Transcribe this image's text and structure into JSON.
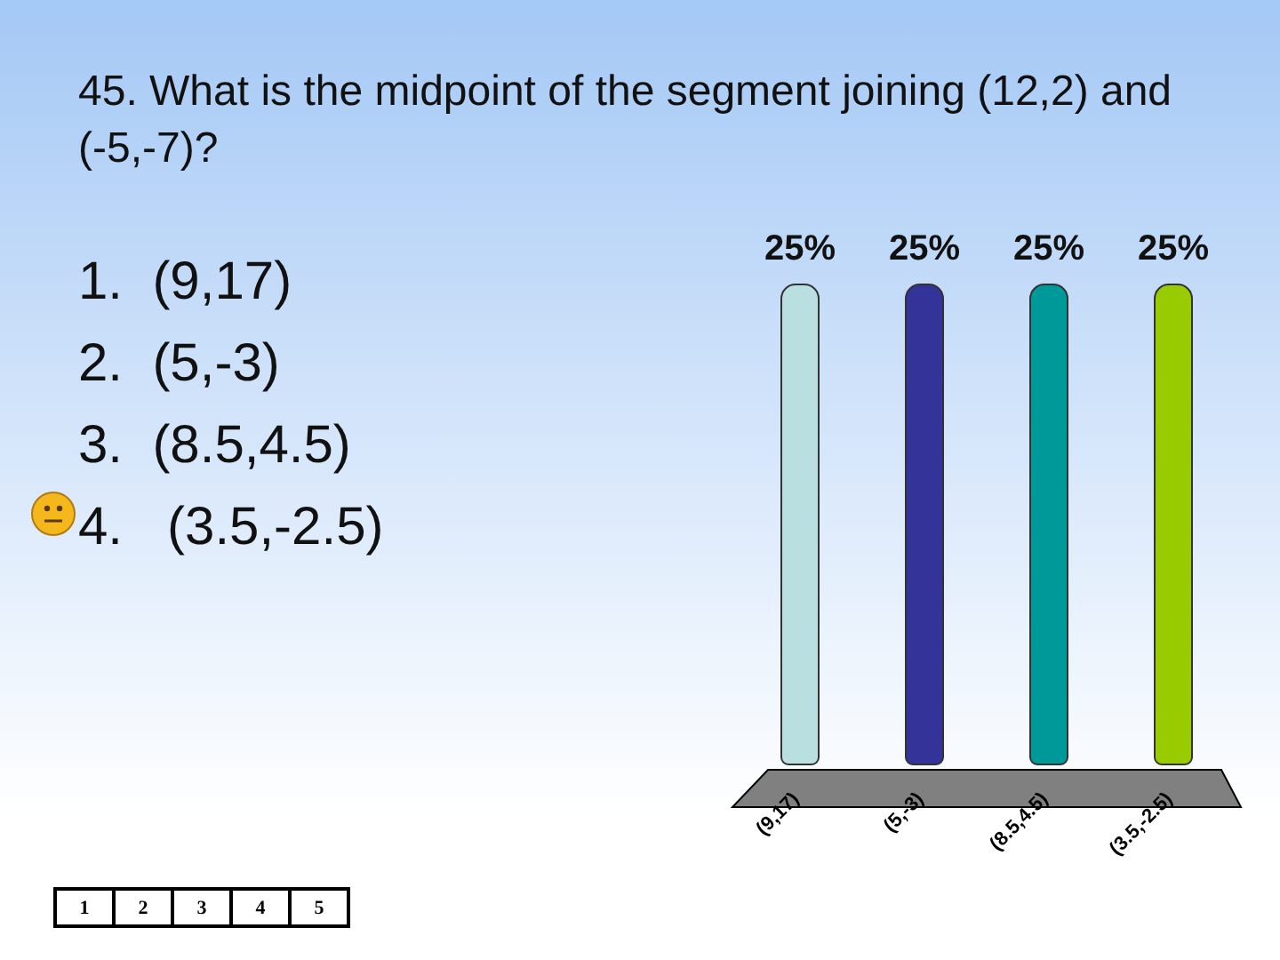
{
  "chart_data": {
    "type": "bar",
    "title": "45.  What is the midpoint of the segment joining (12,2) and (-5,-7)?",
    "categories": [
      "(9,17)",
      "(5,-3)",
      "(8.5,4.5)",
      "(3.5,-2.5)"
    ],
    "values": [
      25,
      25,
      25,
      25
    ],
    "colors": [
      "#b9dfe0",
      "#333399",
      "#009999",
      "#99cc00"
    ],
    "value_labels": [
      "25%",
      "25%",
      "25%",
      "25%"
    ],
    "annotations": [
      "1.  (9,17)",
      "2.  (5,-3)",
      "3.  (8.5,4.5)",
      "4.   (3.5,-2.5)",
      "1",
      "2",
      "3",
      "4",
      "5"
    ]
  }
}
